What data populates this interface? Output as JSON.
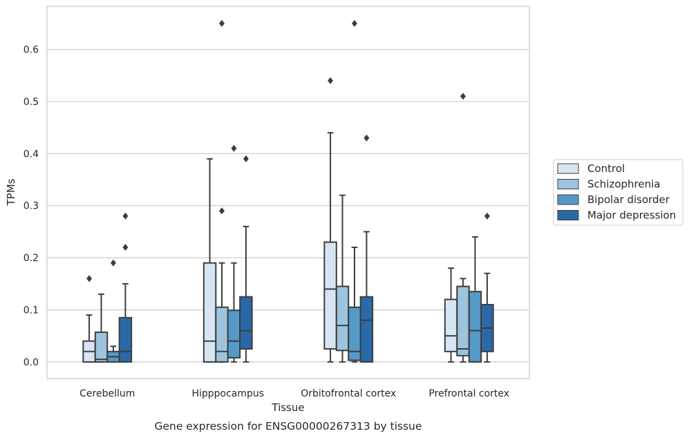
{
  "chart_data": {
    "type": "box",
    "xlabel": "Tissue",
    "ylabel": "TPMs",
    "caption": "Gene expression for ENSG00000267313 by tissue",
    "categories": [
      "Cerebellum",
      "Hipppocampus",
      "Orbitofrontal cortex",
      "Prefrontal cortex"
    ],
    "ylim": [
      -0.032,
      0.683
    ],
    "yticks": [
      0.0,
      0.1,
      0.2,
      0.3,
      0.4,
      0.5,
      0.6
    ],
    "ytick_labels": [
      "0.0",
      "0.1",
      "0.2",
      "0.3",
      "0.4",
      "0.5",
      "0.6"
    ],
    "grid": "horizontal",
    "legend_position": "center-right",
    "series": [
      {
        "name": "Control",
        "color": "#d6e4f3",
        "boxes": [
          {
            "whislo": 0.0,
            "q1": 0.0,
            "med": 0.02,
            "q3": 0.04,
            "whishi": 0.09,
            "fliers": [
              0.16
            ]
          },
          {
            "whislo": 0.0,
            "q1": 0.0,
            "med": 0.04,
            "q3": 0.19,
            "whishi": 0.39,
            "fliers": []
          },
          {
            "whislo": 0.0,
            "q1": 0.025,
            "med": 0.14,
            "q3": 0.23,
            "whishi": 0.44,
            "fliers": [
              0.54
            ]
          },
          {
            "whislo": 0.0,
            "q1": 0.02,
            "med": 0.05,
            "q3": 0.12,
            "whishi": 0.18,
            "fliers": []
          }
        ]
      },
      {
        "name": "Schizophrenia",
        "color": "#9cc4dd",
        "boxes": [
          {
            "whislo": 0.0,
            "q1": 0.0,
            "med": 0.005,
            "q3": 0.057,
            "whishi": 0.13,
            "fliers": []
          },
          {
            "whislo": 0.0,
            "q1": 0.0,
            "med": 0.02,
            "q3": 0.105,
            "whishi": 0.19,
            "fliers": [
              0.29,
              0.65
            ]
          },
          {
            "whislo": 0.0,
            "q1": 0.022,
            "med": 0.07,
            "q3": 0.145,
            "whishi": 0.32,
            "fliers": []
          },
          {
            "whislo": 0.0,
            "q1": 0.012,
            "med": 0.025,
            "q3": 0.145,
            "whishi": 0.16,
            "fliers": [
              0.51
            ]
          }
        ]
      },
      {
        "name": "Bipolar disorder",
        "color": "#5599c6",
        "boxes": [
          {
            "whislo": 0.0,
            "q1": 0.0,
            "med": 0.01,
            "q3": 0.02,
            "whishi": 0.03,
            "fliers": [
              0.19
            ]
          },
          {
            "whislo": 0.0,
            "q1": 0.008,
            "med": 0.04,
            "q3": 0.099,
            "whishi": 0.19,
            "fliers": [
              0.41
            ]
          },
          {
            "whislo": 0.0,
            "q1": 0.003,
            "med": 0.02,
            "q3": 0.105,
            "whishi": 0.22,
            "fliers": [
              0.65
            ]
          },
          {
            "whislo": 0.0,
            "q1": 0.0,
            "med": 0.06,
            "q3": 0.135,
            "whishi": 0.24,
            "fliers": []
          }
        ]
      },
      {
        "name": "Major depression",
        "color": "#2a69a8",
        "boxes": [
          {
            "whislo": 0.0,
            "q1": 0.0,
            "med": 0.02,
            "q3": 0.085,
            "whishi": 0.15,
            "fliers": [
              0.22,
              0.28
            ]
          },
          {
            "whislo": 0.0,
            "q1": 0.025,
            "med": 0.06,
            "q3": 0.125,
            "whishi": 0.26,
            "fliers": [
              0.39
            ]
          },
          {
            "whislo": 0.0,
            "q1": 0.0,
            "med": 0.08,
            "q3": 0.125,
            "whishi": 0.25,
            "fliers": [
              0.43
            ]
          },
          {
            "whislo": 0.0,
            "q1": 0.02,
            "med": 0.065,
            "q3": 0.11,
            "whishi": 0.17,
            "fliers": [
              0.28
            ]
          }
        ]
      }
    ]
  }
}
